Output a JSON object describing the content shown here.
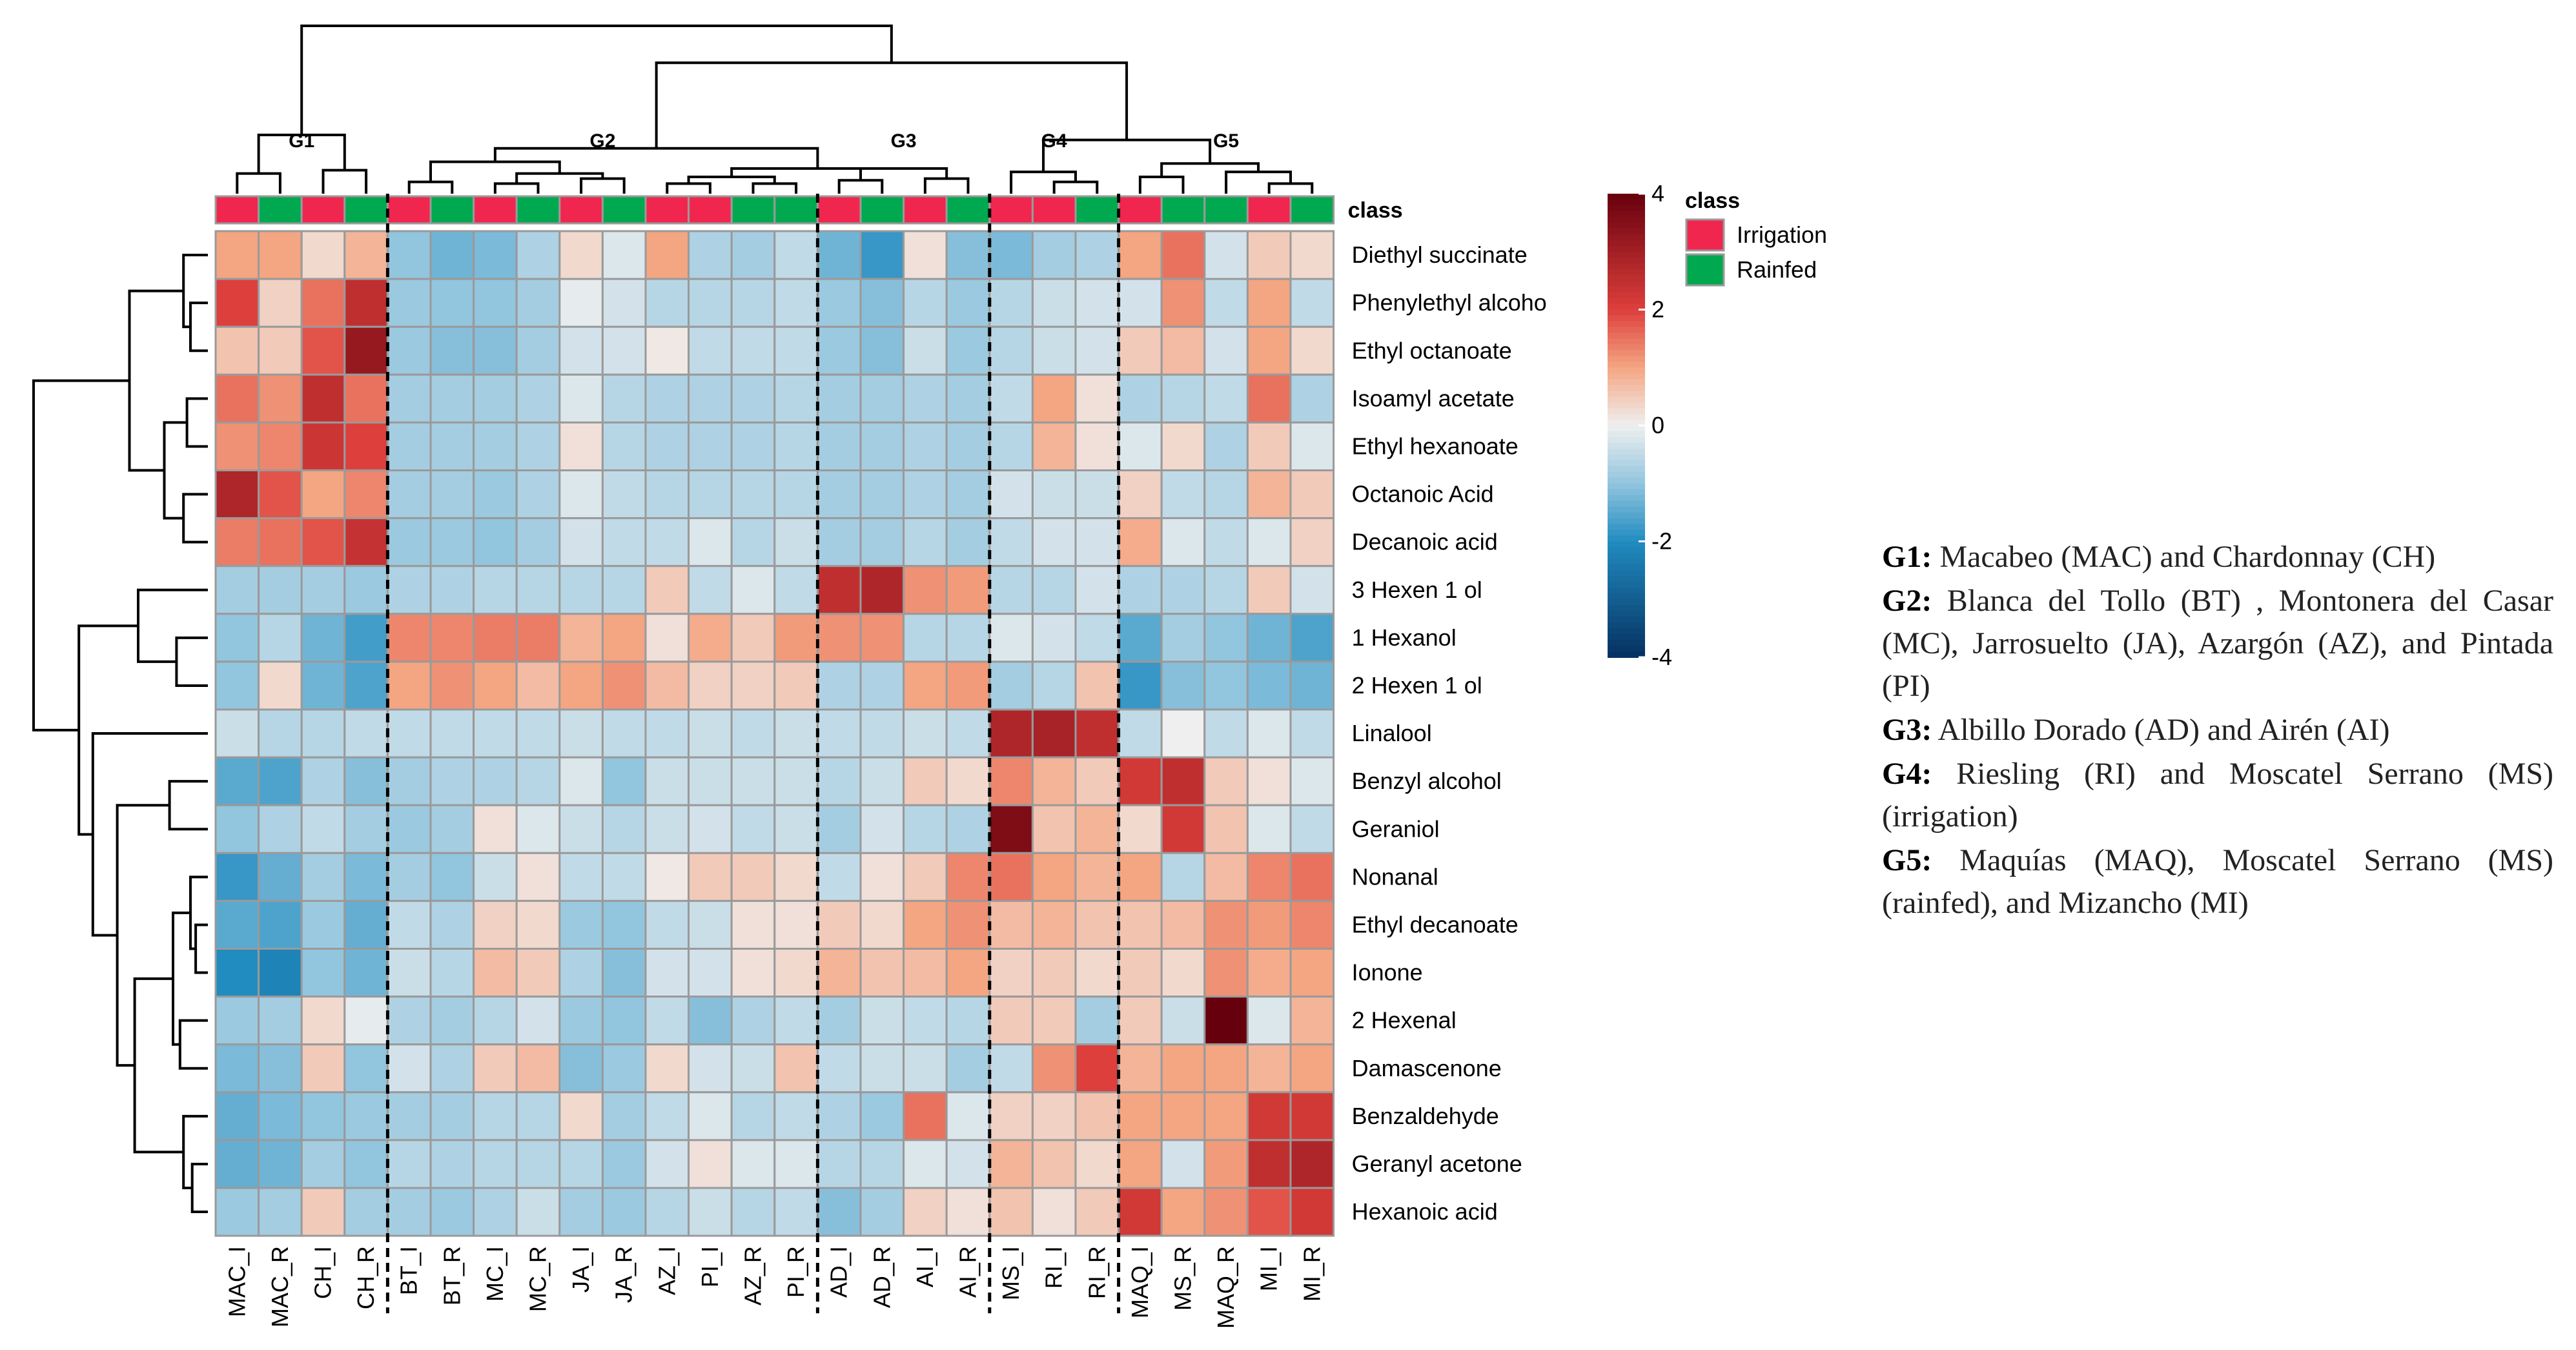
{
  "chart_data": {
    "type": "heatmap",
    "title": "",
    "columns": [
      "MAC_I",
      "MAC_R",
      "CH_I",
      "CH_R",
      "BT_I",
      "BT_R",
      "MC_I",
      "MC_R",
      "JA_I",
      "JA_R",
      "AZ_I",
      "PI_I",
      "AZ_R",
      "PI_R",
      "AD_I",
      "AD_R",
      "AI_I",
      "AI_R",
      "MS_I",
      "RI_I",
      "RI_R",
      "MAQ_I",
      "MS_R",
      "MAQ_R",
      "MI_I",
      "MI_R"
    ],
    "rows": [
      "Diethyl succinate",
      "Phenylethyl alcoho",
      "Ethyl octanoate",
      "Isoamyl acetate",
      "Ethyl hexanoate",
      "Octanoic Acid",
      "Decanoic acid",
      "3 Hexen 1 ol",
      "1 Hexanol",
      "2 Hexen 1 ol",
      "Linalool",
      "Benzyl alcohol",
      "Geraniol",
      "Nonanal",
      "Ethyl decanoate",
      "Ionone",
      "2 Hexenal",
      "Damascenone",
      "Benzaldehyde",
      "Geranyl acetone",
      "Hexanoic acid"
    ],
    "values": [
      [
        1,
        1,
        0.3,
        0.8,
        -1,
        -1.3,
        -1.2,
        -0.7,
        0.3,
        -0.2,
        1,
        -0.7,
        -0.8,
        -0.5,
        -1.3,
        -1.8,
        0.2,
        -1.1,
        -1.2,
        -0.8,
        -0.7,
        1,
        1.5,
        -0.3,
        0.5,
        0.3
      ],
      [
        2,
        0.4,
        1.5,
        2.5,
        -0.9,
        -1,
        -1,
        -0.8,
        -0.1,
        -0.3,
        -0.6,
        -0.6,
        -0.6,
        -0.5,
        -0.9,
        -1.1,
        -0.6,
        -0.9,
        -0.6,
        -0.4,
        -0.3,
        -0.3,
        1.2,
        -0.5,
        1,
        -0.5
      ],
      [
        0.6,
        0.5,
        1.8,
        3.2,
        -0.9,
        -1.1,
        -1.1,
        -0.8,
        -0.3,
        -0.3,
        0.1,
        -0.5,
        -0.5,
        -0.5,
        -0.9,
        -1.1,
        -0.4,
        -0.9,
        -0.6,
        -0.4,
        -0.3,
        0.5,
        0.7,
        -0.3,
        1,
        0.3
      ],
      [
        1.5,
        1.2,
        2.5,
        1.5,
        -0.8,
        -0.8,
        -0.8,
        -0.7,
        -0.2,
        -0.6,
        -0.7,
        -0.7,
        -0.7,
        -0.6,
        -0.8,
        -0.8,
        -0.7,
        -0.8,
        -0.5,
        1,
        0.2,
        -0.7,
        -0.6,
        -0.5,
        1.5,
        -0.7
      ],
      [
        1.2,
        1.3,
        2.3,
        2,
        -0.8,
        -0.8,
        -0.8,
        -0.7,
        0.2,
        -0.6,
        -0.7,
        -0.7,
        -0.7,
        -0.6,
        -0.8,
        -0.8,
        -0.7,
        -0.8,
        -0.6,
        0.8,
        0.2,
        -0.2,
        0.3,
        -0.7,
        0.5,
        -0.2
      ],
      [
        2.8,
        1.8,
        1,
        1.3,
        -0.8,
        -0.8,
        -0.9,
        -0.7,
        -0.2,
        -0.5,
        -0.6,
        -0.6,
        -0.6,
        -0.6,
        -0.8,
        -0.8,
        -0.7,
        -0.8,
        -0.3,
        -0.4,
        -0.4,
        0.4,
        -0.5,
        -0.6,
        0.8,
        0.5
      ],
      [
        1.4,
        1.5,
        1.8,
        2.4,
        -0.9,
        -0.9,
        -1,
        -0.8,
        -0.3,
        -0.5,
        -0.5,
        -0.2,
        -0.6,
        -0.4,
        -0.8,
        -0.8,
        -0.6,
        -0.8,
        -0.5,
        -0.3,
        -0.3,
        0.9,
        -0.2,
        -0.5,
        -0.2,
        0.4
      ],
      [
        -0.8,
        -0.8,
        -0.8,
        -0.9,
        -0.7,
        -0.7,
        -0.6,
        -0.6,
        -0.6,
        -0.6,
        0.5,
        -0.5,
        -0.2,
        -0.5,
        2.5,
        2.8,
        1.2,
        1.1,
        -0.6,
        -0.6,
        -0.3,
        -0.7,
        -0.7,
        -0.6,
        0.5,
        -0.3
      ],
      [
        -1,
        -0.6,
        -1.3,
        -1.7,
        1.3,
        1.3,
        1.4,
        1.4,
        0.8,
        1,
        0.2,
        0.9,
        0.5,
        1.1,
        1.2,
        1.2,
        -0.6,
        -0.6,
        -0.2,
        -0.3,
        -0.5,
        -1.5,
        -0.8,
        -1,
        -1.3,
        -1.6
      ],
      [
        -1,
        0.3,
        -1.3,
        -1.6,
        1,
        1.2,
        1,
        0.7,
        1,
        1.2,
        0.7,
        0.4,
        0.4,
        0.5,
        -0.7,
        -0.7,
        1,
        1.1,
        -0.8,
        -0.6,
        0.6,
        -1.8,
        -1.1,
        -1,
        -1.2,
        -1.3
      ],
      [
        -0.4,
        -0.6,
        -0.6,
        -0.5,
        -0.5,
        -0.5,
        -0.5,
        -0.5,
        -0.4,
        -0.5,
        -0.5,
        -0.4,
        -0.5,
        -0.4,
        -0.5,
        -0.5,
        -0.4,
        -0.5,
        2.8,
        2.9,
        2.5,
        -0.5,
        0,
        -0.5,
        -0.2,
        -0.5
      ],
      [
        -1.5,
        -1.6,
        -0.7,
        -1.1,
        -0.8,
        -0.7,
        -0.7,
        -0.6,
        -0.2,
        -1,
        -0.4,
        -0.4,
        -0.4,
        -0.4,
        -0.6,
        -0.4,
        0.5,
        0.3,
        1.3,
        0.8,
        0.5,
        2.2,
        2.5,
        0.5,
        0.2,
        -0.2
      ],
      [
        -1,
        -0.7,
        -0.5,
        -0.8,
        -0.9,
        -0.8,
        0.2,
        -0.2,
        -0.4,
        -0.6,
        -0.4,
        -0.3,
        -0.5,
        -0.4,
        -0.8,
        -0.3,
        -0.6,
        -0.7,
        3.6,
        0.6,
        0.8,
        0.3,
        2.2,
        0.6,
        -0.2,
        -0.5
      ],
      [
        -1.8,
        -1.4,
        -0.8,
        -1.2,
        -0.8,
        -1,
        -0.4,
        0.2,
        -0.5,
        -0.5,
        0.1,
        0.5,
        0.5,
        0.3,
        -0.5,
        0.2,
        0.5,
        1.3,
        1.5,
        1,
        0.8,
        1,
        -0.6,
        0.7,
        1.3,
        1.5
      ],
      [
        -1.5,
        -1.6,
        -0.9,
        -1.4,
        -0.5,
        -0.7,
        0.4,
        0.3,
        -0.9,
        -1,
        -0.5,
        -0.4,
        0.2,
        0.2,
        0.5,
        0.3,
        1,
        1.2,
        0.7,
        0.8,
        0.6,
        0.6,
        0.7,
        1.2,
        1.1,
        1.3
      ],
      [
        -2,
        -2.2,
        -1,
        -1.3,
        -0.4,
        -0.6,
        0.7,
        0.5,
        -0.7,
        -1.1,
        -0.3,
        -0.3,
        0.2,
        0.3,
        0.8,
        0.6,
        0.7,
        1,
        0.4,
        0.5,
        0.3,
        0.5,
        0.3,
        1.2,
        0.9,
        1
      ],
      [
        -0.9,
        -0.8,
        0.3,
        -0.1,
        -0.7,
        -0.8,
        -0.6,
        -0.3,
        -0.9,
        -1,
        -0.5,
        -1.1,
        -0.7,
        -0.5,
        -0.8,
        -0.4,
        -0.5,
        -0.6,
        0.5,
        0.5,
        -0.8,
        0.5,
        -0.4,
        4,
        -0.2,
        0.8
      ],
      [
        -1.2,
        -1.1,
        0.5,
        -1,
        -0.3,
        -0.7,
        0.5,
        0.7,
        -1.1,
        -0.9,
        0.3,
        -0.3,
        -0.4,
        0.6,
        -0.5,
        -0.4,
        -0.4,
        -0.8,
        -0.5,
        1.2,
        2,
        0.8,
        1,
        1,
        0.8,
        1
      ],
      [
        -1.4,
        -1.2,
        -1,
        -0.9,
        -0.8,
        -0.8,
        -0.6,
        -0.6,
        0.3,
        -0.8,
        -0.5,
        -0.2,
        -0.6,
        -0.5,
        -0.7,
        -0.9,
        1.5,
        -0.2,
        0.4,
        0.4,
        0.6,
        1,
        1,
        1,
        2.2,
        2.2
      ],
      [
        -1.4,
        -1.3,
        -0.8,
        -1,
        -0.6,
        -0.7,
        -0.6,
        -0.6,
        -0.6,
        -0.9,
        -0.3,
        0.2,
        -0.2,
        -0.2,
        -0.6,
        -0.6,
        -0.2,
        -0.3,
        0.8,
        0.6,
        0.3,
        1,
        -0.3,
        1.1,
        2.5,
        2.8
      ],
      [
        -0.9,
        -0.8,
        0.5,
        -0.8,
        -0.8,
        -0.9,
        -0.7,
        -0.4,
        -0.8,
        -0.9,
        -0.6,
        -0.4,
        -0.6,
        -0.5,
        -1.1,
        -0.8,
        0.4,
        0.2,
        0.6,
        0.2,
        0.5,
        2.2,
        1,
        1.2,
        1.8,
        2.2
      ]
    ],
    "class_annotation": {
      "title": "class",
      "values": [
        "Irrigation",
        "Rainfed",
        "Irrigation",
        "Rainfed",
        "Irrigation",
        "Rainfed",
        "Irrigation",
        "Rainfed",
        "Irrigation",
        "Rainfed",
        "Irrigation",
        "Irrigation",
        "Rainfed",
        "Rainfed",
        "Irrigation",
        "Rainfed",
        "Irrigation",
        "Rainfed",
        "Irrigation",
        "Irrigation",
        "Rainfed",
        "Irrigation",
        "Rainfed",
        "Rainfed",
        "Irrigation",
        "Rainfed"
      ],
      "legend": [
        {
          "label": "Irrigation",
          "color": "#F0264F"
        },
        {
          "label": "Rainfed",
          "color": "#00A94F"
        }
      ]
    },
    "color_scale": {
      "range": [
        -4,
        4
      ],
      "tick_labels": [
        "4",
        "2",
        "0",
        "-2",
        "-4"
      ],
      "low_color": "#08306B",
      "mid_color": "#F2F2F2",
      "high_color": "#67000D"
    },
    "group_labels": [
      {
        "label": "G1",
        "start": 0,
        "end": 3
      },
      {
        "label": "G2",
        "start": 4,
        "end": 13
      },
      {
        "label": "G3",
        "start": 14,
        "end": 17
      },
      {
        "label": "G4",
        "start": 18,
        "end": 20
      },
      {
        "label": "G5",
        "start": 21,
        "end": 25
      }
    ],
    "group_separators_after_column": [
      3,
      13,
      17,
      20
    ]
  },
  "caption": [
    {
      "label": "G1:",
      "text": " Macabeo (MAC) and Chardonnay (CH)"
    },
    {
      "label": "G2:",
      "text": " Blanca del Tollo (BT) , Montonera del Casar (MC), Jarrosuelto (JA), Azargón (AZ), and Pintada (PI)"
    },
    {
      "label": "G3:",
      "text": " Albillo Dorado (AD) and Airén (AI)"
    },
    {
      "label": "G4:",
      "text": " Riesling (RI) and Moscatel Serrano (MS) (irrigation)"
    },
    {
      "label": "G5:",
      "text": " Maquías (MAQ), Moscatel Serrano (MS) (rainfed), and Mizancho (MI)"
    }
  ]
}
